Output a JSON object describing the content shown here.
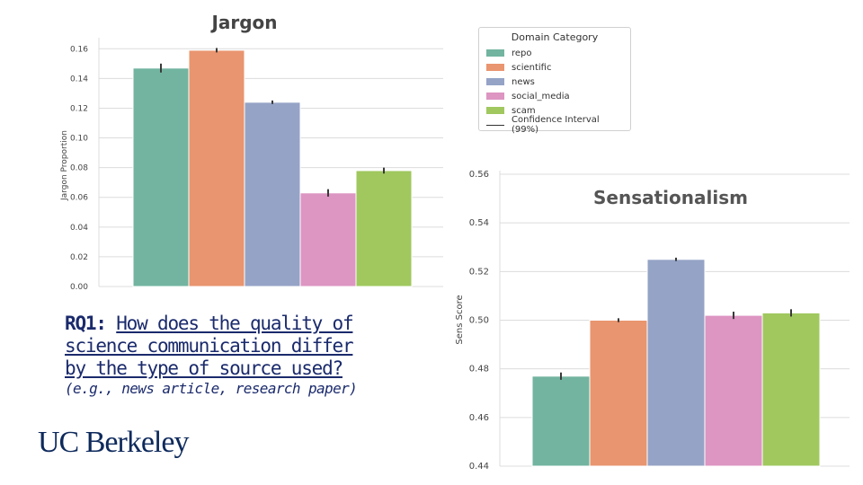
{
  "colors": {
    "repo": "#72b4a0",
    "scientific": "#e9956f",
    "news": "#95a3c6",
    "social_media": "#dd95c2",
    "scam": "#a0c85f"
  },
  "legend": {
    "title": "Domain Category",
    "items": [
      "repo",
      "scientific",
      "news",
      "social_media",
      "scam"
    ],
    "ci_label": "Confidence Interval (99%)"
  },
  "chart_data": [
    {
      "type": "bar",
      "title": "Jargon",
      "ylabel": "Jargon Proportion",
      "xlabel": "",
      "categories": [
        "repo",
        "scientific",
        "news",
        "social_media",
        "scam"
      ],
      "values": [
        0.147,
        0.159,
        0.124,
        0.063,
        0.078
      ],
      "ci": [
        0.003,
        0.0015,
        0.0012,
        0.0025,
        0.002
      ],
      "ylim": [
        0,
        0.165
      ],
      "yticks": [
        "0.00",
        "0.02",
        "0.04",
        "0.06",
        "0.08",
        "0.10",
        "0.12",
        "0.14",
        "0.16"
      ],
      "grid": true
    },
    {
      "type": "bar",
      "title": "Sensationalism",
      "ylabel": "Sens Score",
      "xlabel": "",
      "categories": [
        "repo",
        "scientific",
        "news",
        "social_media",
        "scam"
      ],
      "values": [
        0.477,
        0.5,
        0.525,
        0.502,
        0.503
      ],
      "ci": [
        0.0015,
        0.0008,
        0.0007,
        0.0015,
        0.0015
      ],
      "ylim": [
        0.44,
        0.56
      ],
      "yticks": [
        "0.44",
        "0.46",
        "0.48",
        "0.50",
        "0.52",
        "0.54",
        "0.56"
      ],
      "grid": true
    }
  ],
  "rq": {
    "label": "RQ1:",
    "question_line1": "How does the quality of",
    "question_line2": "science communication differ",
    "question_line3": "by the type of source used?",
    "examples": "(e.g., news article, research paper)"
  },
  "logo": {
    "text": "UC Berkeley"
  }
}
